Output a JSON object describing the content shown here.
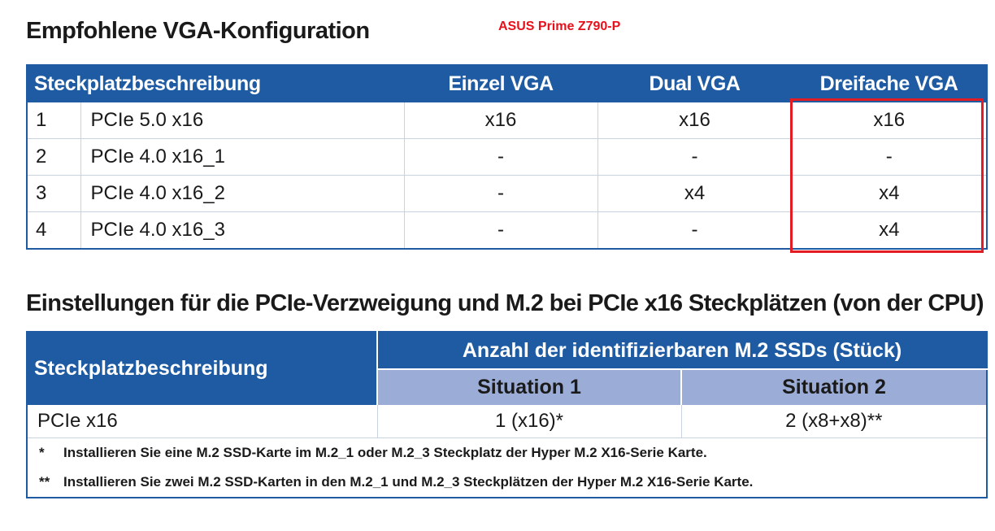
{
  "title1": "Empfohlene VGA-Konfiguration",
  "brand": "ASUS Prime Z790-P",
  "table1": {
    "headers": [
      "Steckplatzbeschreibung",
      "Einzel VGA",
      "Dual VGA",
      "Dreifache VGA"
    ],
    "rows": [
      [
        "1",
        "PCIe 5.0 x16",
        "x16",
        "x16",
        "x16"
      ],
      [
        "2",
        "PCIe 4.0 x16_1",
        "-",
        "-",
        "-"
      ],
      [
        "3",
        "PCIe 4.0 x16_2",
        "-",
        "x4",
        "x4"
      ],
      [
        "4",
        "PCIe 4.0 x16_3",
        "-",
        "-",
        "x4"
      ]
    ],
    "highlight_color": "#e31b23",
    "header_color": "#1e5ba3"
  },
  "title2": "Einstellungen für die PCIe-Verzweigung und M.2 bei PCIe x16 Steckplätzen (von der CPU)",
  "table2": {
    "desc_header": "Steckplatzbeschreibung",
    "group_header": "Anzahl der identifizierbaren M.2 SSDs (Stück)",
    "situations": [
      "Situation 1",
      "Situation 2"
    ],
    "row": [
      "PCIe x16",
      "1 (x16)*",
      "2 (x8+x8)**"
    ],
    "notes": [
      {
        "mark": "*",
        "text": "Installieren Sie eine M.2 SSD-Karte im M.2_1 oder M.2_3 Steckplatz der Hyper M.2 X16-Serie Karte."
      },
      {
        "mark": "**",
        "text": "Installieren Sie zwei M.2 SSD-Karten in den M.2_1 und M.2_3 Steckplätzen der Hyper M.2 X16-Serie Karte."
      }
    ],
    "subheader_color": "#9badd6"
  }
}
